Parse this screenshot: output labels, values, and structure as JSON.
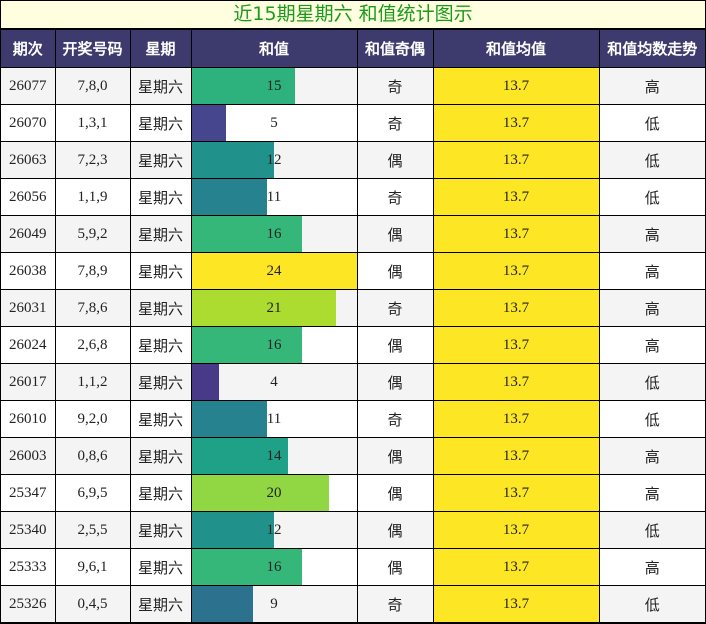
{
  "title": "近15期星期六 和值统计图示",
  "headers": [
    "期次",
    "开奖号码",
    "星期",
    "和值",
    "和值奇偶",
    "和值均值",
    "和值均数走势"
  ],
  "sum_max": 24,
  "avg_color": "#fde725",
  "rows": [
    {
      "issue": "26077",
      "numbers": "7,8,0",
      "weekday": "星期六",
      "sum": 15,
      "parity": "奇",
      "avg": "13.7",
      "trend": "高",
      "color": "#2db27d"
    },
    {
      "issue": "26070",
      "numbers": "1,3,1",
      "weekday": "星期六",
      "sum": 5,
      "parity": "奇",
      "avg": "13.7",
      "trend": "低",
      "color": "#46468f"
    },
    {
      "issue": "26063",
      "numbers": "7,2,3",
      "weekday": "星期六",
      "sum": 12,
      "parity": "偶",
      "avg": "13.7",
      "trend": "低",
      "color": "#21918c"
    },
    {
      "issue": "26056",
      "numbers": "1,1,9",
      "weekday": "星期六",
      "sum": 11,
      "parity": "奇",
      "avg": "13.7",
      "trend": "低",
      "color": "#26828e"
    },
    {
      "issue": "26049",
      "numbers": "5,9,2",
      "weekday": "星期六",
      "sum": 16,
      "parity": "偶",
      "avg": "13.7",
      "trend": "高",
      "color": "#35b779"
    },
    {
      "issue": "26038",
      "numbers": "7,8,9",
      "weekday": "星期六",
      "sum": 24,
      "parity": "偶",
      "avg": "13.7",
      "trend": "高",
      "color": "#fde725"
    },
    {
      "issue": "26031",
      "numbers": "7,8,6",
      "weekday": "星期六",
      "sum": 21,
      "parity": "奇",
      "avg": "13.7",
      "trend": "高",
      "color": "#addc30"
    },
    {
      "issue": "26024",
      "numbers": "2,6,8",
      "weekday": "星期六",
      "sum": 16,
      "parity": "偶",
      "avg": "13.7",
      "trend": "高",
      "color": "#35b779"
    },
    {
      "issue": "26017",
      "numbers": "1,1,2",
      "weekday": "星期六",
      "sum": 4,
      "parity": "偶",
      "avg": "13.7",
      "trend": "低",
      "color": "#483a88"
    },
    {
      "issue": "26010",
      "numbers": "9,2,0",
      "weekday": "星期六",
      "sum": 11,
      "parity": "奇",
      "avg": "13.7",
      "trend": "低",
      "color": "#26828e"
    },
    {
      "issue": "26003",
      "numbers": "0,8,6",
      "weekday": "星期六",
      "sum": 14,
      "parity": "偶",
      "avg": "13.7",
      "trend": "高",
      "color": "#1fa187"
    },
    {
      "issue": "25347",
      "numbers": "6,9,5",
      "weekday": "星期六",
      "sum": 20,
      "parity": "偶",
      "avg": "13.7",
      "trend": "高",
      "color": "#90d743"
    },
    {
      "issue": "25340",
      "numbers": "2,5,5",
      "weekday": "星期六",
      "sum": 12,
      "parity": "偶",
      "avg": "13.7",
      "trend": "低",
      "color": "#21918c"
    },
    {
      "issue": "25333",
      "numbers": "9,6,1",
      "weekday": "星期六",
      "sum": 16,
      "parity": "偶",
      "avg": "13.7",
      "trend": "高",
      "color": "#35b779"
    },
    {
      "issue": "25326",
      "numbers": "0,4,5",
      "weekday": "星期六",
      "sum": 9,
      "parity": "奇",
      "avg": "13.7",
      "trend": "低",
      "color": "#2c728e"
    }
  ]
}
